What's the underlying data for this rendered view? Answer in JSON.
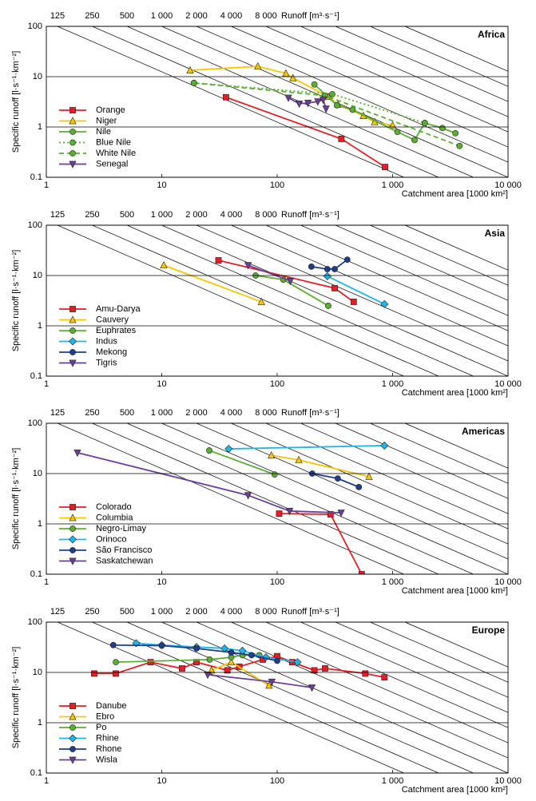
{
  "chart_data": [
    {
      "type": "line",
      "title": "Africa",
      "xlabel": "Catchment area [1000 km²]",
      "ylabel": "Specific runoff [l·s⁻¹·km⁻²]",
      "runoff_label": "Runoff [m³·s⁻¹]",
      "log_x": true,
      "log_y": true,
      "xlim": [
        1,
        10000
      ],
      "ylim": [
        0.1,
        100
      ],
      "xticks": [
        1,
        10,
        100,
        {
          "value": 1000,
          "label": "1 000"
        },
        {
          "value": 10000,
          "label": "10 000"
        }
      ],
      "yticks": [
        0.1,
        1,
        10,
        100
      ],
      "runoff_ticks": [
        125,
        250,
        500,
        {
          "value": 1000,
          "label": "1 000"
        },
        {
          "value": 2000,
          "label": "2 000"
        },
        {
          "value": 4000,
          "label": "4 000"
        },
        {
          "value": 8000,
          "label": "8 000"
        }
      ],
      "runoff_lines": [
        16000,
        32000,
        64000,
        128000
      ],
      "legend": "lower left",
      "series": [
        {
          "name": "Orange",
          "color": "#e31e24",
          "marker": "square",
          "dash": "solid",
          "x": [
            36,
            360,
            860
          ],
          "values": [
            3.9,
            0.58,
            0.16
          ]
        },
        {
          "name": "Niger",
          "color": "#f7c600",
          "marker": "triangle",
          "dash": "solid",
          "x": [
            17.6,
            68,
            119,
            137,
            277,
            336,
            558,
            698,
            1000
          ],
          "values": [
            13.4,
            16,
            11.6,
            9.4,
            4.0,
            2.8,
            1.67,
            1.25,
            1.08
          ]
        },
        {
          "name": "Nile",
          "color": "#5aae32",
          "marker": "circle",
          "dash": "solid",
          "x": [
            210,
            330,
            450,
            1100,
            1550,
            1900,
            2700,
            3500
          ],
          "values": [
            7,
            2.7,
            2.2,
            0.8,
            0.55,
            1.2,
            0.95,
            0.75
          ]
        },
        {
          "name": "Blue Nile",
          "color": "#5aae32",
          "marker": "circle",
          "dash": "dotted",
          "x": [
            19,
            300,
            1900
          ],
          "values": [
            7.5,
            4.5,
            1.2
          ]
        },
        {
          "name": "White Nile",
          "color": "#5aae32",
          "marker": "circle",
          "dash": "dashed",
          "x": [
            19,
            260,
            3800
          ],
          "values": [
            7.5,
            4.2,
            0.42
          ]
        },
        {
          "name": "Senegal",
          "color": "#6b3f98",
          "marker": "triangle-down",
          "dash": "solid",
          "x": [
            125,
            155,
            185,
            225,
            250,
            265
          ],
          "values": [
            3.8,
            2.9,
            3.0,
            3.2,
            3.5,
            2.3
          ]
        }
      ]
    },
    {
      "type": "line",
      "title": "Asia",
      "xlabel": "Catchment area [1000 km²]",
      "ylabel": "Specific runoff [l·s⁻¹·km⁻²]",
      "runoff_label": "Runoff [m³·s⁻¹]",
      "log_x": true,
      "log_y": true,
      "xlim": [
        1,
        10000
      ],
      "ylim": [
        0.1,
        100
      ],
      "xticks": [
        1,
        10,
        100,
        {
          "value": 1000,
          "label": "1 000"
        },
        {
          "value": 10000,
          "label": "10 000"
        }
      ],
      "yticks": [
        0.1,
        1,
        10,
        100
      ],
      "runoff_ticks": [
        125,
        250,
        500,
        {
          "value": 1000,
          "label": "1 000"
        },
        {
          "value": 2000,
          "label": "2 000"
        },
        {
          "value": 4000,
          "label": "4 000"
        },
        {
          "value": 8000,
          "label": "8 000"
        }
      ],
      "runoff_lines": [
        16000,
        32000,
        64000,
        128000
      ],
      "legend": "lower left",
      "series": [
        {
          "name": "Amu-Darya",
          "color": "#e31e24",
          "marker": "square",
          "dash": "solid",
          "x": [
            31,
            315,
            460
          ],
          "values": [
            20,
            5.6,
            3.0
          ]
        },
        {
          "name": "Cauvery",
          "color": "#f7c600",
          "marker": "triangle",
          "dash": "solid",
          "x": [
            10.4,
            73
          ],
          "values": [
            16,
            3.0
          ]
        },
        {
          "name": "Euphrates",
          "color": "#5aae32",
          "marker": "circle",
          "dash": "solid",
          "x": [
            65,
            113,
            277
          ],
          "values": [
            10,
            8.3,
            2.5
          ]
        },
        {
          "name": "Indus",
          "color": "#1fb5e8",
          "marker": "diamond",
          "dash": "solid",
          "x": [
            272,
            850
          ],
          "values": [
            9.7,
            2.7
          ]
        },
        {
          "name": "Mekong",
          "color": "#203d8c",
          "marker": "circle",
          "dash": "solid",
          "x": [
            198,
            272,
            315,
            405
          ],
          "values": [
            15,
            13.4,
            13.4,
            20.7
          ]
        },
        {
          "name": "Tigris",
          "color": "#6b3f98",
          "marker": "triangle-down",
          "dash": "solid",
          "x": [
            56,
            130
          ],
          "values": [
            16,
            7.8
          ]
        }
      ]
    },
    {
      "type": "line",
      "title": "Americas",
      "xlabel": "Catchment area [1000 km²]",
      "ylabel": "Specific runoff [l·s⁻¹·km⁻²]",
      "runoff_label": "Runoff [m³·s⁻¹]",
      "log_x": true,
      "log_y": true,
      "xlim": [
        1,
        10000
      ],
      "ylim": [
        0.1,
        100
      ],
      "xticks": [
        1,
        10,
        100,
        {
          "value": 1000,
          "label": "1 000"
        },
        {
          "value": 10000,
          "label": "10 000"
        }
      ],
      "yticks": [
        0.1,
        1,
        10,
        100
      ],
      "runoff_ticks": [
        125,
        250,
        500,
        {
          "value": 1000,
          "label": "1 000"
        },
        {
          "value": 2000,
          "label": "2 000"
        },
        {
          "value": 4000,
          "label": "4 000"
        },
        {
          "value": 8000,
          "label": "8 000"
        }
      ],
      "runoff_lines": [
        16000,
        32000,
        64000,
        128000
      ],
      "legend": "lower left",
      "series": [
        {
          "name": "Colorado",
          "color": "#e31e24",
          "marker": "square",
          "dash": "solid",
          "x": [
            104,
            290,
            540
          ],
          "values": [
            1.6,
            1.55,
            0.1
          ]
        },
        {
          "name": "Columbia",
          "color": "#f7c600",
          "marker": "triangle",
          "dash": "solid",
          "x": [
            89,
            154,
            625
          ],
          "values": [
            23,
            18.6,
            8.7
          ]
        },
        {
          "name": "Negro-Limay",
          "color": "#5aae32",
          "marker": "circle",
          "dash": "solid",
          "x": [
            25.8,
            95
          ],
          "values": [
            28.8,
            9.6
          ]
        },
        {
          "name": "Orinoco",
          "color": "#1fb5e8",
          "marker": "diamond",
          "dash": "solid",
          "x": [
            38,
            850
          ],
          "values": [
            31,
            36
          ]
        },
        {
          "name": "São Francisco",
          "color": "#203d8c",
          "marker": "circle",
          "dash": "solid",
          "x": [
            201,
            335,
            510
          ],
          "values": [
            10,
            8.0,
            5.4
          ]
        },
        {
          "name": "Saskatchewan",
          "color": "#6b3f98",
          "marker": "triangle-down",
          "dash": "solid",
          "x": [
            1.86,
            56,
            128,
            358
          ],
          "values": [
            26,
            3.7,
            1.8,
            1.66
          ]
        }
      ]
    },
    {
      "type": "line",
      "title": "Europe",
      "xlabel": "Catchment area [1000 km²]",
      "ylabel": "Specific runoff [l·s⁻¹·km⁻²]",
      "runoff_label": "Runoff [m³·s⁻¹]",
      "log_x": true,
      "log_y": true,
      "xlim": [
        1,
        10000
      ],
      "ylim": [
        0.1,
        100
      ],
      "xticks": [
        1,
        10,
        100,
        {
          "value": 1000,
          "label": "1 000"
        },
        {
          "value": 10000,
          "label": "10 000"
        }
      ],
      "yticks": [
        0.1,
        1,
        10,
        100
      ],
      "runoff_ticks": [
        125,
        250,
        500,
        {
          "value": 1000,
          "label": "1 000"
        },
        {
          "value": 2000,
          "label": "2 000"
        },
        {
          "value": 4000,
          "label": "4 000"
        },
        {
          "value": 8000,
          "label": "8 000"
        }
      ],
      "runoff_lines": [
        16000,
        32000,
        64000,
        128000
      ],
      "legend": "lower left",
      "series": [
        {
          "name": "Danube",
          "color": "#e31e24",
          "marker": "square",
          "dash": "solid",
          "x": [
            2.6,
            4,
            8,
            15,
            20,
            37,
            47,
            75,
            100,
            135,
            210,
            260,
            580,
            850
          ],
          "values": [
            9.5,
            9.5,
            16,
            12,
            16,
            11,
            13,
            18,
            21,
            16,
            11,
            12,
            9.5,
            8
          ]
        },
        {
          "name": "Ebro",
          "color": "#f7c600",
          "marker": "triangle",
          "dash": "solid",
          "x": [
            27,
            40,
            85
          ],
          "values": [
            11,
            16,
            5.5
          ]
        },
        {
          "name": "Po",
          "color": "#5aae32",
          "marker": "circle",
          "dash": "solid",
          "x": [
            4,
            26,
            40,
            50,
            70
          ],
          "values": [
            16,
            18,
            20,
            22,
            22
          ]
        },
        {
          "name": "Rhine",
          "color": "#1fb5e8",
          "marker": "diamond",
          "dash": "solid",
          "x": [
            6,
            10,
            20,
            35,
            50,
            80,
            150
          ],
          "values": [
            38,
            35,
            32,
            30,
            27,
            20,
            16
          ]
        },
        {
          "name": "Rhone",
          "color": "#203d8c",
          "marker": "circle",
          "dash": "solid",
          "x": [
            3.8,
            10,
            20,
            40,
            60,
            100
          ],
          "values": [
            35,
            34,
            30,
            25,
            22,
            17
          ]
        },
        {
          "name": "Wisla",
          "color": "#6b3f98",
          "marker": "triangle-down",
          "dash": "solid",
          "x": [
            25,
            90,
            200
          ],
          "values": [
            9,
            6.5,
            5
          ]
        }
      ]
    }
  ]
}
